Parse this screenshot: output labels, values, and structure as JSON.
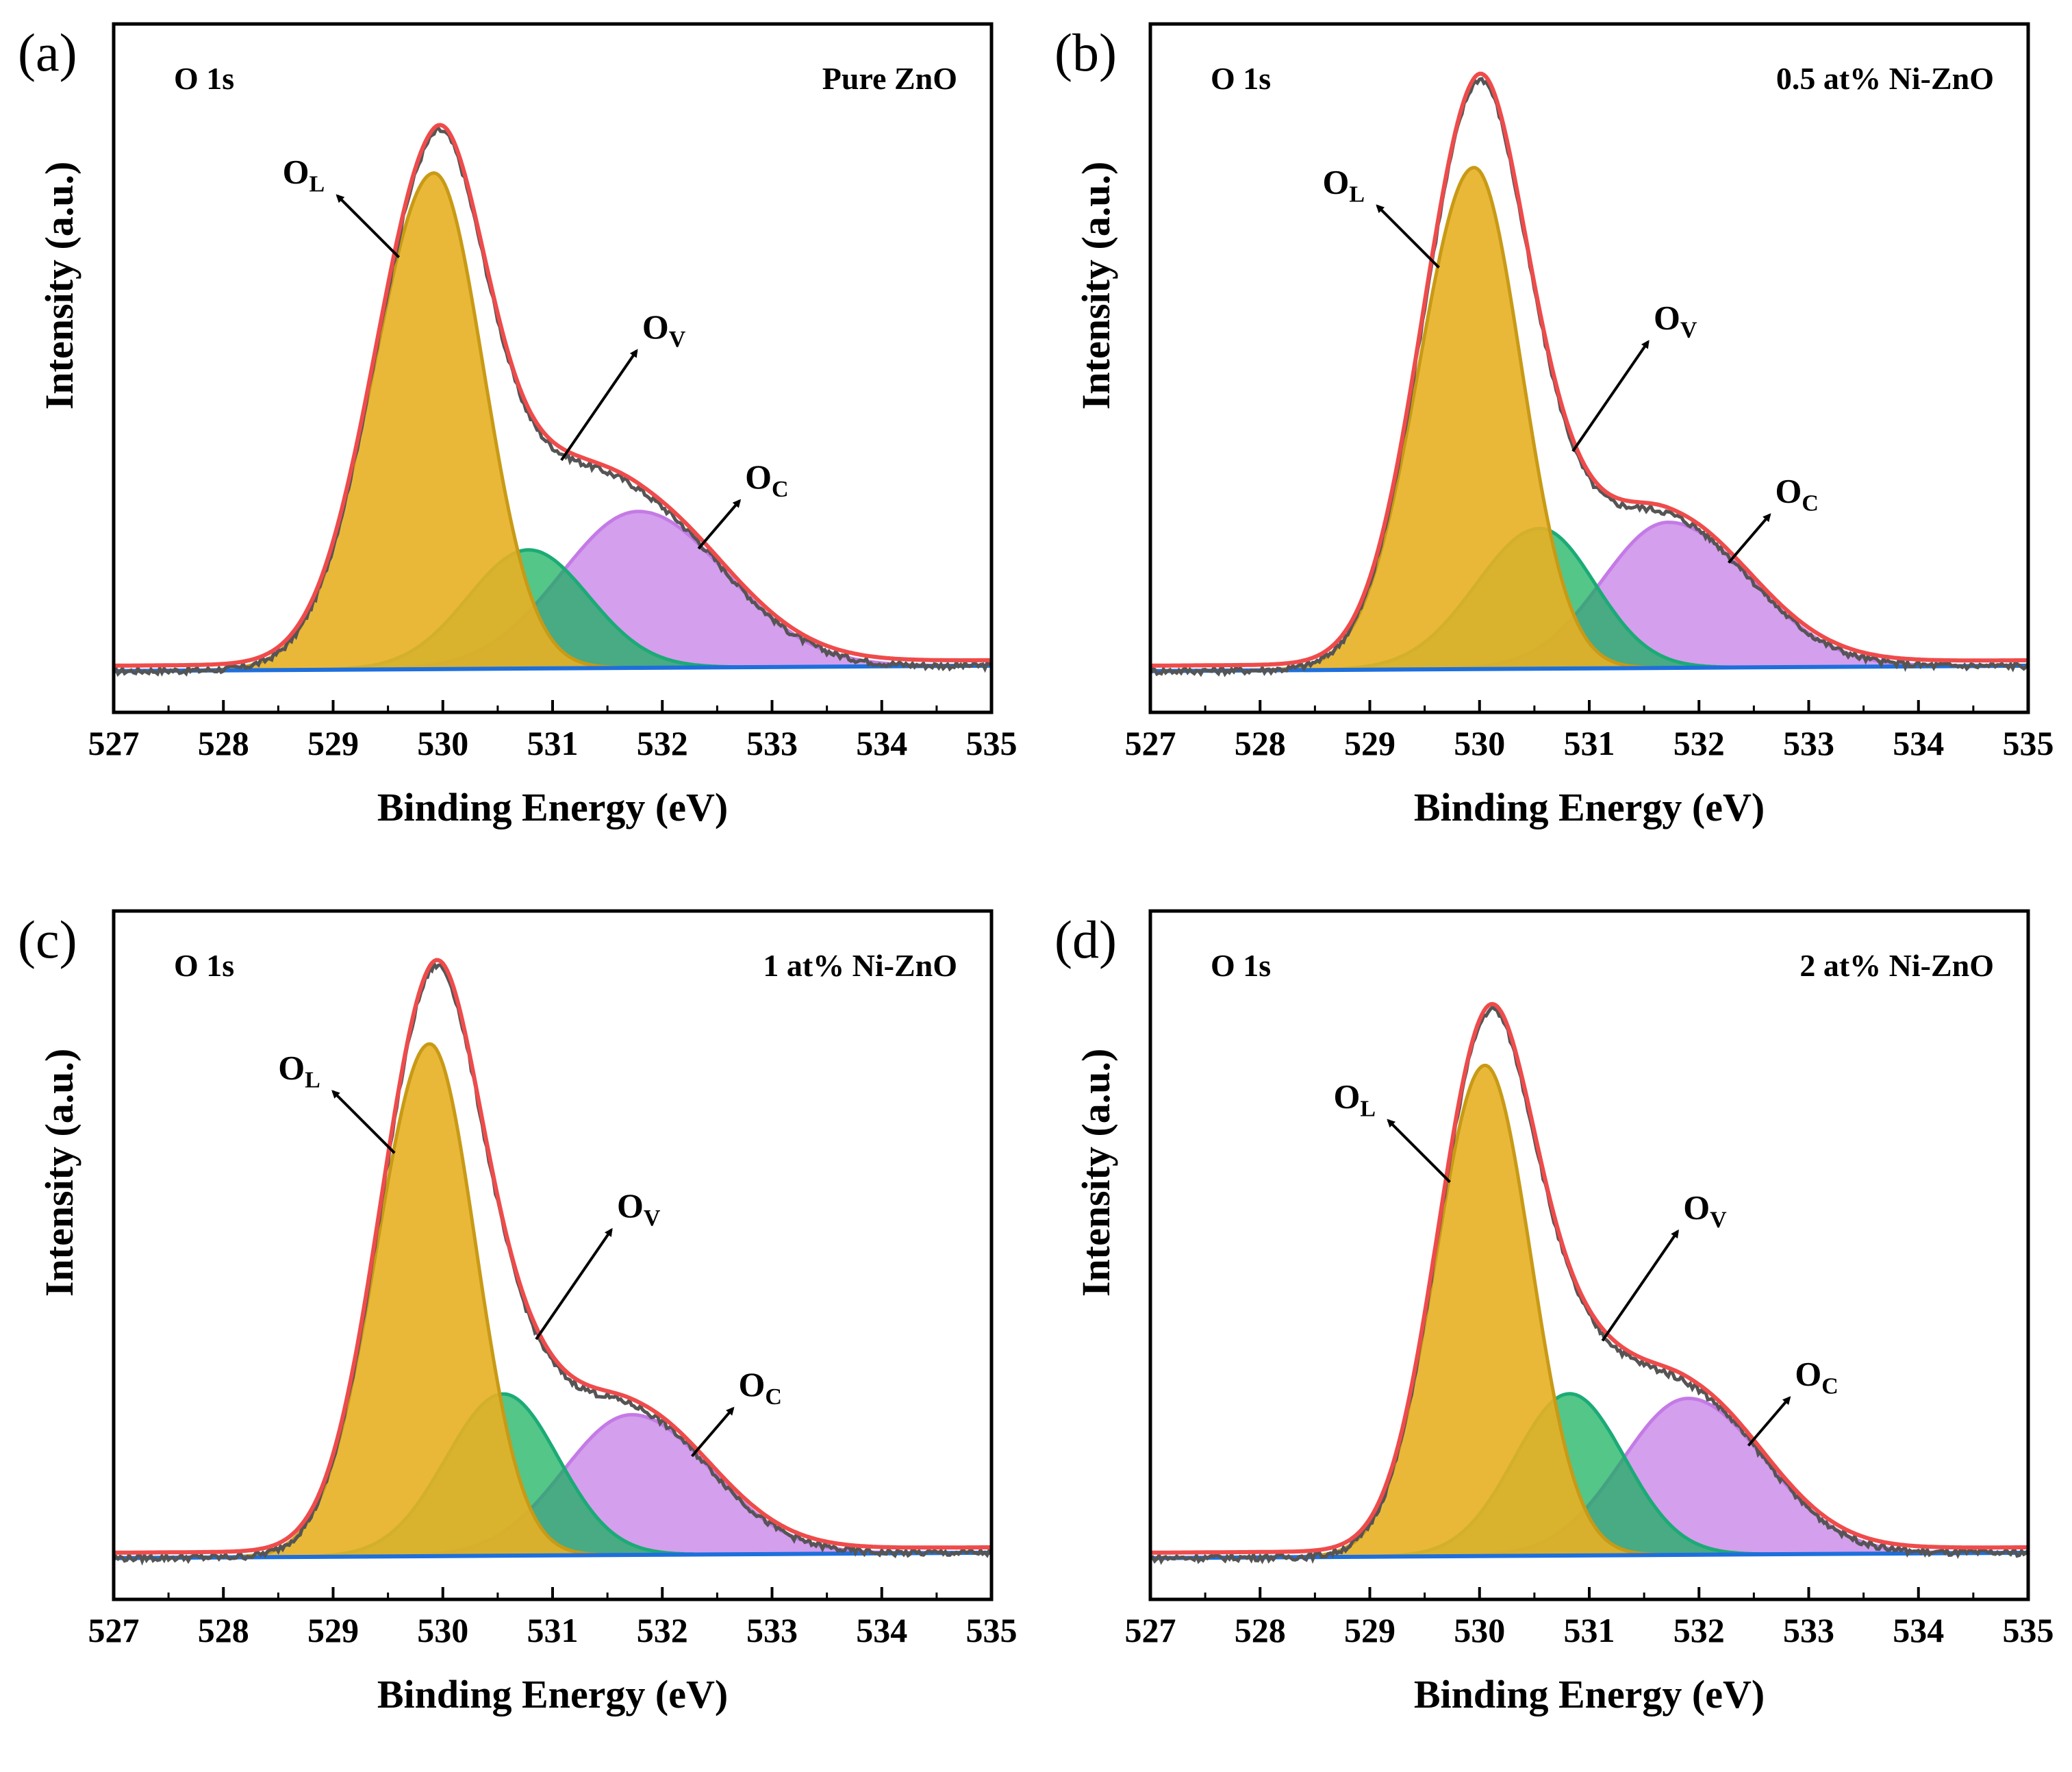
{
  "figure": {
    "colors": {
      "envelope": "#ef4b4b",
      "raw": "#555555",
      "background": "#1e6fdc",
      "ol_fill": "#e8b023",
      "ol_line": "#c89a16",
      "ov_fill": "#12b05a",
      "ov_line": "#1bab76",
      "oc_fill": "#c47ae6",
      "oc_line": "#c47ae6"
    }
  },
  "chart_data": [
    {
      "type": "line",
      "panel_label": "(a)",
      "region_label": "O 1s",
      "sample_label": "Pure ZnO",
      "xlabel": "Binding Energy (eV)",
      "ylabel": "Intensity (a.u.)",
      "xlim": [
        527,
        535
      ],
      "ylim": [
        0,
        1.2
      ],
      "x_ticks": [
        "527",
        "528",
        "529",
        "530",
        "531",
        "532",
        "533",
        "534",
        "535"
      ],
      "grid": false,
      "series": [
        {
          "name": "O_L",
          "label_main": "O",
          "label_sub": "L",
          "center": 529.92,
          "amplitude": 0.92,
          "sigma_left": 0.55,
          "sigma_right": 0.45
        },
        {
          "name": "O_V",
          "label_main": "O",
          "label_sub": "V",
          "center": 530.78,
          "amplitude": 0.22,
          "sigma_left": 0.55,
          "sigma_right": 0.55
        },
        {
          "name": "O_C",
          "label_main": "O",
          "label_sub": "C",
          "center": 531.78,
          "amplitude": 0.29,
          "sigma_left": 0.7,
          "sigma_right": 0.8
        }
      ],
      "baseline": [
        0.0,
        0.01
      ]
    },
    {
      "type": "line",
      "panel_label": "(b)",
      "region_label": "O 1s",
      "sample_label": "0.5 at% Ni-ZnO",
      "xlabel": "Binding Energy (eV)",
      "ylabel": "Intensity (a.u.)",
      "xlim": [
        527,
        535
      ],
      "ylim": [
        0,
        1.2
      ],
      "x_ticks": [
        "527",
        "528",
        "529",
        "530",
        "531",
        "532",
        "533",
        "534",
        "535"
      ],
      "grid": false,
      "series": [
        {
          "name": "O_L",
          "label_main": "O",
          "label_sub": "L",
          "center": 529.95,
          "amplitude": 0.93,
          "sigma_left": 0.5,
          "sigma_right": 0.43
        },
        {
          "name": "O_V",
          "label_main": "O",
          "label_sub": "V",
          "center": 530.55,
          "amplitude": 0.26,
          "sigma_left": 0.58,
          "sigma_right": 0.5
        },
        {
          "name": "O_C",
          "label_main": "O",
          "label_sub": "C",
          "center": 531.72,
          "amplitude": 0.27,
          "sigma_left": 0.6,
          "sigma_right": 0.75
        }
      ],
      "baseline": [
        0.0,
        0.01
      ]
    },
    {
      "type": "line",
      "panel_label": "(c)",
      "region_label": "O 1s",
      "sample_label": "1 at% Ni-ZnO",
      "xlabel": "Binding Energy (eV)",
      "ylabel": "Intensity (a.u.)",
      "xlim": [
        527,
        535
      ],
      "ylim": [
        0,
        1.2
      ],
      "x_ticks": [
        "527",
        "528",
        "529",
        "530",
        "531",
        "532",
        "533",
        "534",
        "535"
      ],
      "grid": false,
      "series": [
        {
          "name": "O_L",
          "label_main": "O",
          "label_sub": "L",
          "center": 529.88,
          "amplitude": 0.95,
          "sigma_left": 0.48,
          "sigma_right": 0.42
        },
        {
          "name": "O_V",
          "label_main": "O",
          "label_sub": "V",
          "center": 530.55,
          "amplitude": 0.3,
          "sigma_left": 0.52,
          "sigma_right": 0.5
        },
        {
          "name": "O_C",
          "label_main": "O",
          "label_sub": "C",
          "center": 531.72,
          "amplitude": 0.26,
          "sigma_left": 0.62,
          "sigma_right": 0.72
        }
      ],
      "baseline": [
        0.0,
        0.01
      ]
    },
    {
      "type": "line",
      "panel_label": "(d)",
      "region_label": "O 1s",
      "sample_label": "2 at% Ni-ZnO",
      "xlabel": "Binding Energy (eV)",
      "ylabel": "Intensity (a.u.)",
      "xlim": [
        527,
        535
      ],
      "ylim": [
        0,
        1.2
      ],
      "x_ticks": [
        "527",
        "528",
        "529",
        "530",
        "531",
        "532",
        "533",
        "534",
        "535"
      ],
      "grid": false,
      "series": [
        {
          "name": "O_L",
          "label_main": "O",
          "label_sub": "L",
          "center": 530.05,
          "amplitude": 0.91,
          "sigma_left": 0.45,
          "sigma_right": 0.42
        },
        {
          "name": "O_V",
          "label_main": "O",
          "label_sub": "V",
          "center": 530.82,
          "amplitude": 0.3,
          "sigma_left": 0.5,
          "sigma_right": 0.5
        },
        {
          "name": "O_C",
          "label_main": "O",
          "label_sub": "C",
          "center": 531.9,
          "amplitude": 0.29,
          "sigma_left": 0.6,
          "sigma_right": 0.7
        }
      ],
      "baseline": [
        0.0,
        0.01
      ]
    }
  ]
}
